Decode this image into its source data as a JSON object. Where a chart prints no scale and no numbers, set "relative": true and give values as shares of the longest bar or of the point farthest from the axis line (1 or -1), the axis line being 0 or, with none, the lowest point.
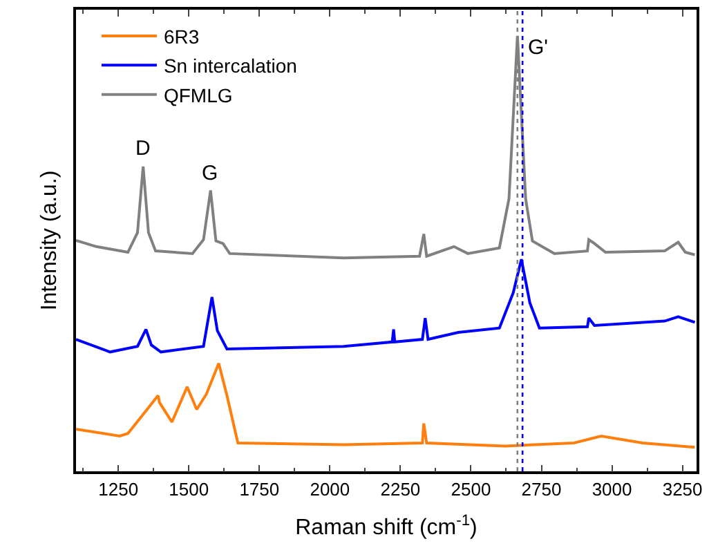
{
  "chart_data": {
    "type": "line",
    "relative": true,
    "xlabel": "Raman shift (cm$^{-1}$)",
    "ylabel": "Intensity (a.u.)",
    "xlim": [
      1100,
      3300
    ],
    "xticks": [
      1250,
      1500,
      1750,
      2000,
      2250,
      2500,
      2750,
      3000,
      3250
    ],
    "tick_labels": "x",
    "legend": "top left",
    "marker": "none",
    "line_style": "solid",
    "series": [
      {
        "name": "6R3",
        "color": "#ff7f0e",
        "x": [
          1100,
          1255,
          1284,
          1352,
          1391,
          1396,
          1440,
          1494,
          1528,
          1562,
          1606,
          1635,
          1674,
          2050,
          2328,
          2333,
          2343,
          2621,
          2865,
          2962,
          3109,
          3294
        ],
        "values": [
          0.097,
          0.081,
          0.087,
          0.142,
          0.174,
          0.158,
          0.113,
          0.194,
          0.142,
          0.177,
          0.248,
          0.174,
          0.065,
          0.061,
          0.065,
          0.11,
          0.065,
          0.058,
          0.065,
          0.081,
          0.065,
          0.055
        ]
      },
      {
        "name": "Sn intercalation",
        "color": "#0000ff",
        "x": [
          1100,
          1221,
          1318,
          1348,
          1367,
          1401,
          1552,
          1582,
          1601,
          1635,
          2050,
          2221,
          2226,
          2230,
          2328,
          2338,
          2348,
          2455,
          2601,
          2650,
          2679,
          2709,
          2743,
          2913,
          2918,
          2938,
          3187,
          3235,
          3294
        ],
        "values": [
          0.303,
          0.274,
          0.287,
          0.326,
          0.29,
          0.274,
          0.287,
          0.4,
          0.323,
          0.281,
          0.287,
          0.297,
          0.326,
          0.297,
          0.303,
          0.352,
          0.303,
          0.319,
          0.329,
          0.41,
          0.487,
          0.387,
          0.329,
          0.332,
          0.352,
          0.335,
          0.345,
          0.355,
          0.342
        ]
      },
      {
        "name": "QFMLG",
        "color": "#808080",
        "x": [
          1100,
          1172,
          1284,
          1318,
          1338,
          1357,
          1382,
          1513,
          1552,
          1577,
          1596,
          1621,
          1645,
          2050,
          2318,
          2333,
          2343,
          2440,
          2489,
          2601,
          2635,
          2665,
          2694,
          2718,
          2796,
          2913,
          2918,
          2938,
          2977,
          3187,
          3235,
          3260,
          3294
        ],
        "values": [
          0.53,
          0.516,
          0.503,
          0.548,
          0.7,
          0.548,
          0.506,
          0.5,
          0.532,
          0.645,
          0.529,
          0.523,
          0.5,
          0.49,
          0.494,
          0.545,
          0.494,
          0.516,
          0.5,
          0.513,
          0.626,
          1.0,
          0.626,
          0.529,
          0.5,
          0.506,
          0.532,
          0.523,
          0.503,
          0.506,
          0.526,
          0.503,
          0.497
        ]
      }
    ],
    "ref_lines": [
      {
        "axis": "x",
        "value": 2665,
        "color": "#808080",
        "line_style": "dotted"
      },
      {
        "axis": "x",
        "value": 2683,
        "color": "#0000ff",
        "line_style": "dotted"
      }
    ],
    "annotations": [
      {
        "text": "D",
        "x": 1338,
        "y": 0.7
      },
      {
        "text": "G",
        "x": 1577,
        "y": 0.645
      },
      {
        "text": "G'",
        "x": 2665,
        "y": 1.0
      }
    ]
  }
}
